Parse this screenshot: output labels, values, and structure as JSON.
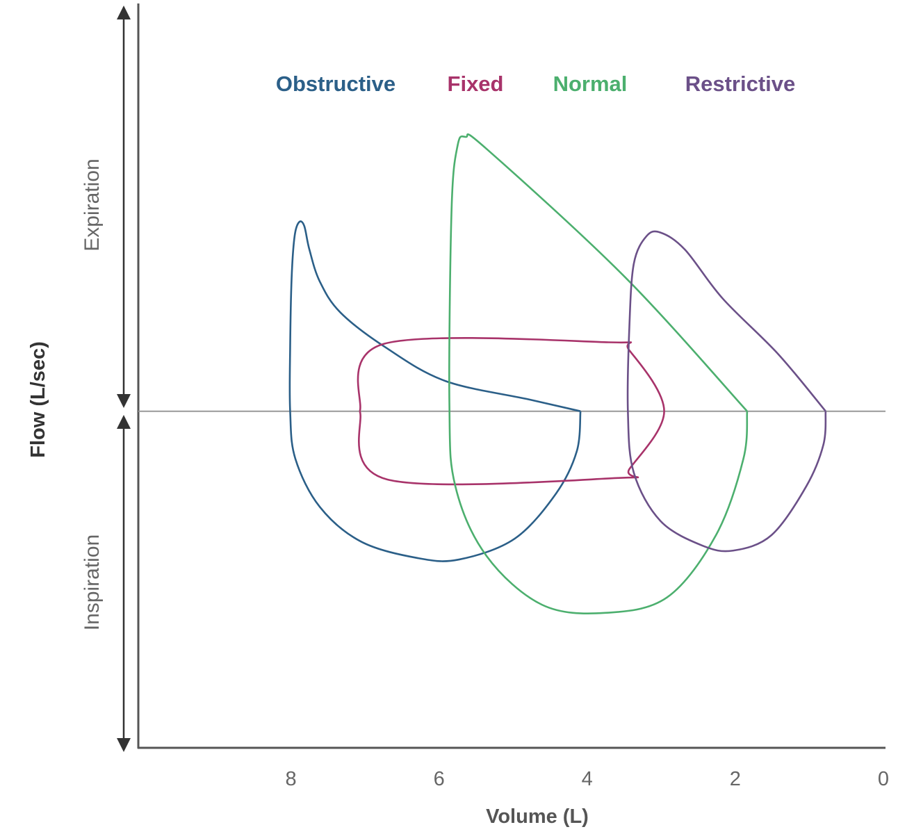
{
  "chart_data": {
    "type": "line",
    "title": "",
    "xlabel": "Volume (L)",
    "ylabel": "Flow (L/sec)",
    "x_reversed": true,
    "xlim": [
      10.06,
      0
    ],
    "ylim": [
      -4.54,
      5.5
    ],
    "xticks": [
      8,
      6,
      4,
      2,
      0
    ],
    "grid": false,
    "zero_line": true,
    "legend_placement": "top",
    "arrow_labels": {
      "upper": "Expiration",
      "lower": "Inspiration"
    },
    "series": [
      {
        "name": "Obstructive",
        "color": "#2b5f88",
        "points": [
          [
            4.09,
            0
          ],
          [
            4.79,
            0.16
          ],
          [
            5.92,
            0.41
          ],
          [
            6.72,
            0.86
          ],
          [
            7.33,
            1.33
          ],
          [
            7.61,
            1.75
          ],
          [
            7.75,
            2.18
          ],
          [
            7.82,
            2.5
          ],
          [
            7.89,
            2.55
          ],
          [
            7.95,
            2.36
          ],
          [
            7.99,
            1.8
          ],
          [
            8.01,
            0.86
          ],
          [
            8.01,
            0
          ],
          [
            7.94,
            -0.64
          ],
          [
            7.61,
            -1.29
          ],
          [
            7.05,
            -1.76
          ],
          [
            6.29,
            -1.98
          ],
          [
            5.73,
            -2.0
          ],
          [
            4.98,
            -1.72
          ],
          [
            4.42,
            -1.11
          ],
          [
            4.14,
            -0.54
          ],
          [
            4.09,
            0
          ]
        ]
      },
      {
        "name": "Fixed",
        "color": "#a8336a",
        "points": [
          [
            7.07,
            0
          ],
          [
            6.74,
            0.91
          ],
          [
            3.71,
            0.93
          ],
          [
            3.43,
            0.82
          ],
          [
            2.96,
            0
          ],
          [
            3.43,
            -0.78
          ],
          [
            3.57,
            -0.9
          ],
          [
            6.7,
            -0.92
          ],
          [
            7.07,
            0
          ]
        ]
      },
      {
        "name": "Normal",
        "color": "#4caf6e",
        "points": [
          [
            1.84,
            0
          ],
          [
            3.48,
            1.8
          ],
          [
            5.36,
            3.54
          ],
          [
            5.64,
            3.7
          ],
          [
            5.75,
            3.58
          ],
          [
            5.83,
            2.74
          ],
          [
            5.86,
            0.11
          ],
          [
            5.78,
            -1.01
          ],
          [
            5.36,
            -1.95
          ],
          [
            4.61,
            -2.61
          ],
          [
            3.76,
            -2.72
          ],
          [
            2.92,
            -2.51
          ],
          [
            2.26,
            -1.67
          ],
          [
            1.89,
            -0.64
          ],
          [
            1.84,
            0
          ]
        ]
      },
      {
        "name": "Restrictive",
        "color": "#6b5088",
        "points": [
          [
            0.78,
            0
          ],
          [
            1.42,
            0.77
          ],
          [
            2.17,
            1.52
          ],
          [
            2.68,
            2.18
          ],
          [
            3.01,
            2.41
          ],
          [
            3.2,
            2.36
          ],
          [
            3.37,
            1.99
          ],
          [
            3.43,
            1.14
          ],
          [
            3.45,
            0
          ],
          [
            3.37,
            -0.83
          ],
          [
            3.01,
            -1.48
          ],
          [
            2.45,
            -1.81
          ],
          [
            2.03,
            -1.88
          ],
          [
            1.51,
            -1.67
          ],
          [
            1.04,
            -1.01
          ],
          [
            0.81,
            -0.45
          ],
          [
            0.78,
            0
          ]
        ]
      }
    ]
  }
}
